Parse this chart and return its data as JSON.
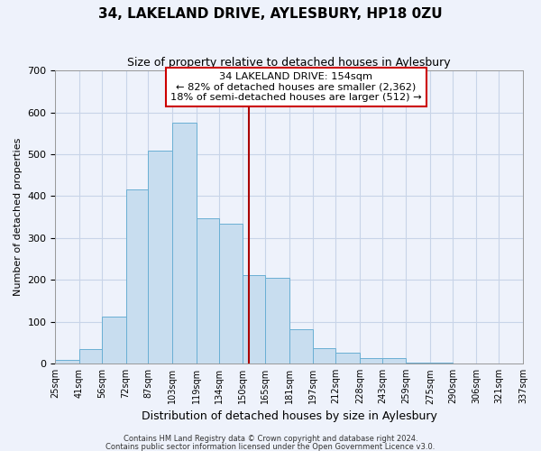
{
  "title": "34, LAKELAND DRIVE, AYLESBURY, HP18 0ZU",
  "subtitle": "Size of property relative to detached houses in Aylesbury",
  "xlabel": "Distribution of detached houses by size in Aylesbury",
  "ylabel": "Number of detached properties",
  "bin_edges": [
    25,
    41,
    56,
    72,
    87,
    103,
    119,
    134,
    150,
    165,
    181,
    197,
    212,
    228,
    243,
    259,
    275,
    290,
    306,
    321,
    337
  ],
  "bin_labels": [
    "25sqm",
    "41sqm",
    "56sqm",
    "72sqm",
    "87sqm",
    "103sqm",
    "119sqm",
    "134sqm",
    "150sqm",
    "165sqm",
    "181sqm",
    "197sqm",
    "212sqm",
    "228sqm",
    "243sqm",
    "259sqm",
    "275sqm",
    "290sqm",
    "306sqm",
    "321sqm",
    "337sqm"
  ],
  "bar_heights": [
    8,
    35,
    112,
    416,
    508,
    575,
    346,
    334,
    212,
    204,
    82,
    37,
    26,
    13,
    13,
    3,
    2,
    1,
    1,
    0
  ],
  "bar_color": "#c8ddef",
  "bar_edgecolor": "#6aafd4",
  "vline_x": 154,
  "vline_color": "#aa0000",
  "ylim": [
    0,
    700
  ],
  "yticks": [
    0,
    100,
    200,
    300,
    400,
    500,
    600,
    700
  ],
  "annotation_title": "34 LAKELAND DRIVE: 154sqm",
  "annotation_line1": "← 82% of detached houses are smaller (2,362)",
  "annotation_line2": "18% of semi-detached houses are larger (512) →",
  "annotation_box_color": "#ffffff",
  "annotation_box_edgecolor": "#cc0000",
  "footer1": "Contains HM Land Registry data © Crown copyright and database right 2024.",
  "footer2": "Contains public sector information licensed under the Open Government Licence v3.0.",
  "background_color": "#eef2fb",
  "grid_color": "#c8d4e8",
  "title_fontsize": 11,
  "subtitle_fontsize": 9,
  "ylabel_fontsize": 8,
  "xlabel_fontsize": 9
}
